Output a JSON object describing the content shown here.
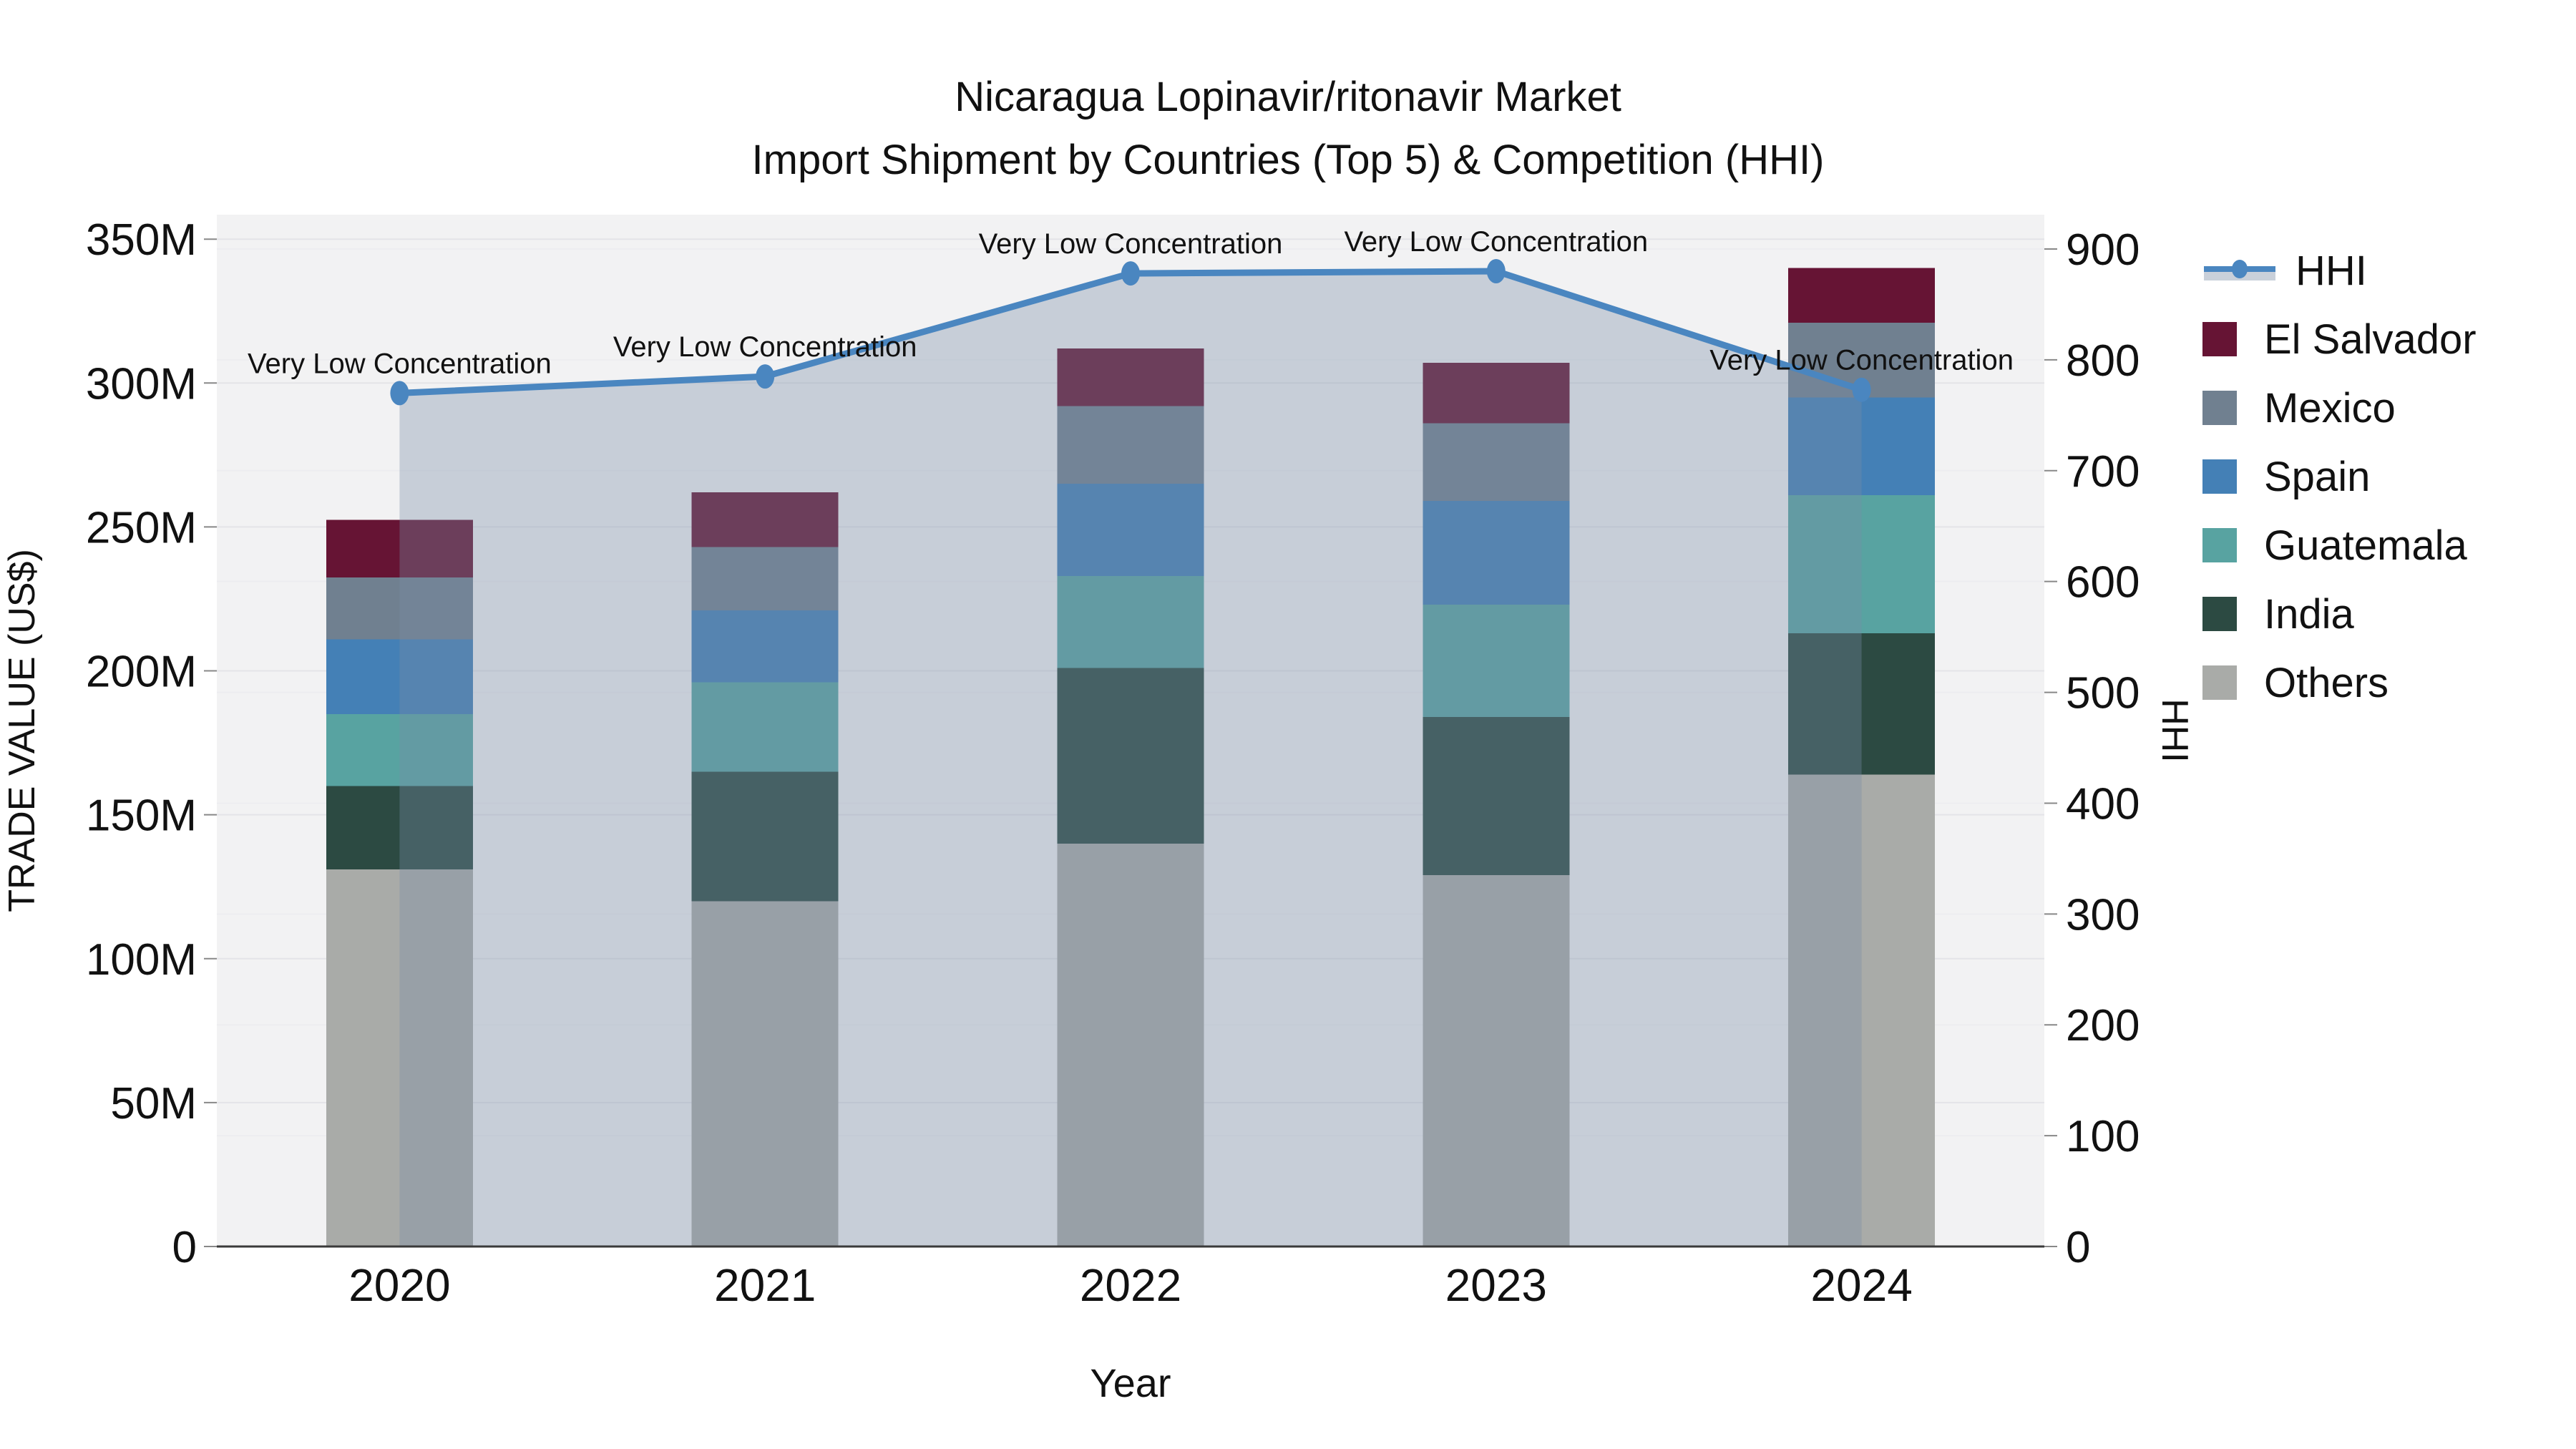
{
  "chart_data": {
    "type": "bar+line",
    "title_line1": "Nicaragua Lopinavir/ritonavir Market",
    "title_line2": "Import Shipment by Countries (Top 5) & Competition (HHI)",
    "xlabel": "Year",
    "ylabel_left": "TRADE VALUE (US$)",
    "ylabel_right": "HHI",
    "value_unit": "millions US$",
    "categories": [
      "2020",
      "2021",
      "2022",
      "2023",
      "2024"
    ],
    "stack_order_bottom_to_top": [
      "Others",
      "India",
      "Guatemala",
      "Spain",
      "Mexico",
      "El Salvador"
    ],
    "series": [
      {
        "name": "El Salvador",
        "values": [
          20,
          19,
          20,
          21,
          19
        ]
      },
      {
        "name": "Mexico",
        "values": [
          21.5,
          22,
          27,
          27,
          26
        ]
      },
      {
        "name": "Spain",
        "values": [
          26,
          25,
          32,
          36,
          34
        ]
      },
      {
        "name": "Guatemala",
        "values": [
          25,
          31,
          32,
          39,
          48
        ]
      },
      {
        "name": "India",
        "values": [
          29,
          45,
          61,
          55,
          49
        ]
      },
      {
        "name": "Others",
        "values": [
          131,
          120,
          140,
          129,
          164
        ]
      }
    ],
    "line_series": {
      "name": "HHI",
      "values": [
        770,
        785,
        878,
        880,
        773
      ],
      "point_annotations": [
        "Very Low Concentration",
        "Very Low Concentration",
        "Very Low Concentration",
        "Very Low Concentration",
        "Very Low Concentration"
      ]
    },
    "y_left_axis": {
      "tick_values": [
        0,
        50,
        100,
        150,
        200,
        250,
        300,
        350
      ],
      "tick_labels": [
        "0",
        "50M",
        "100M",
        "150M",
        "200M",
        "250M",
        "300M",
        "350M"
      ],
      "display_max": 358.5
    },
    "y_right_axis": {
      "tick_values": [
        0,
        100,
        200,
        300,
        400,
        500,
        600,
        700,
        800,
        900
      ],
      "tick_labels": [
        "0",
        "100",
        "200",
        "300",
        "400",
        "500",
        "600",
        "700",
        "800",
        "900"
      ],
      "display_max": 931
    },
    "grid": "on",
    "legend_position": "right",
    "legend_entries": [
      "HHI",
      "El Salvador",
      "Mexico",
      "Spain",
      "Guatemala",
      "India",
      "Others"
    ],
    "colors": {
      "El Salvador": "#661434",
      "Mexico": "#708090",
      "Spain": "#4480b6",
      "Guatemala": "#58a3a1",
      "India": "#2c4a42",
      "Others": "#a9aba8",
      "hhi_line": "#4a86c0",
      "hhi_area_fill": "rgba(120,139,166,0.35)",
      "plot_background": "#f2f2f3",
      "gridline": "#e4e4e8",
      "axis_line": "#3a3a3a",
      "tick_mark": "#888888"
    }
  }
}
